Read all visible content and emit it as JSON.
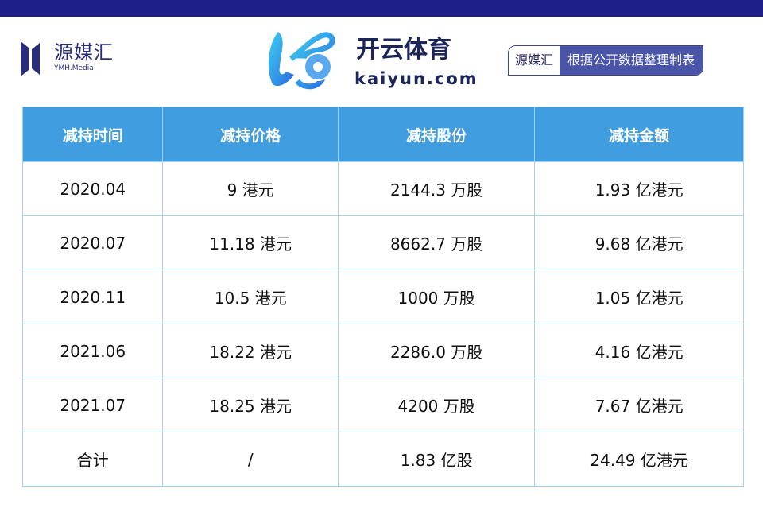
{
  "brand": {
    "name_cn": "源媒汇",
    "name_en": "YMH.Media"
  },
  "source_badge": {
    "left": "源媒汇",
    "right": "根据公开数据整理制表"
  },
  "table": {
    "headers": [
      "减持时间",
      "减持价格",
      "减持股份",
      "减持金额"
    ],
    "rows": [
      [
        "2020.04",
        "9 港元",
        "2144.3 万股",
        "1.93 亿港元"
      ],
      [
        "2020.07",
        "11.18 港元",
        "8662.7 万股",
        "9.68 亿港元"
      ],
      [
        "2020.11",
        "10.5 港元",
        "1000 万股",
        "1.05 亿港元"
      ],
      [
        "2021.06",
        "18.22 港元",
        "2286.0 万股",
        "4.16 亿港元"
      ],
      [
        "2021.07",
        "18.25 港元",
        "4200 万股",
        "7.67 亿港元"
      ],
      [
        "合计",
        "/",
        "1.83 亿股",
        "24.49 亿港元"
      ]
    ]
  },
  "watermark": {
    "cn": "开云体育",
    "en": "kaiyun.com"
  }
}
